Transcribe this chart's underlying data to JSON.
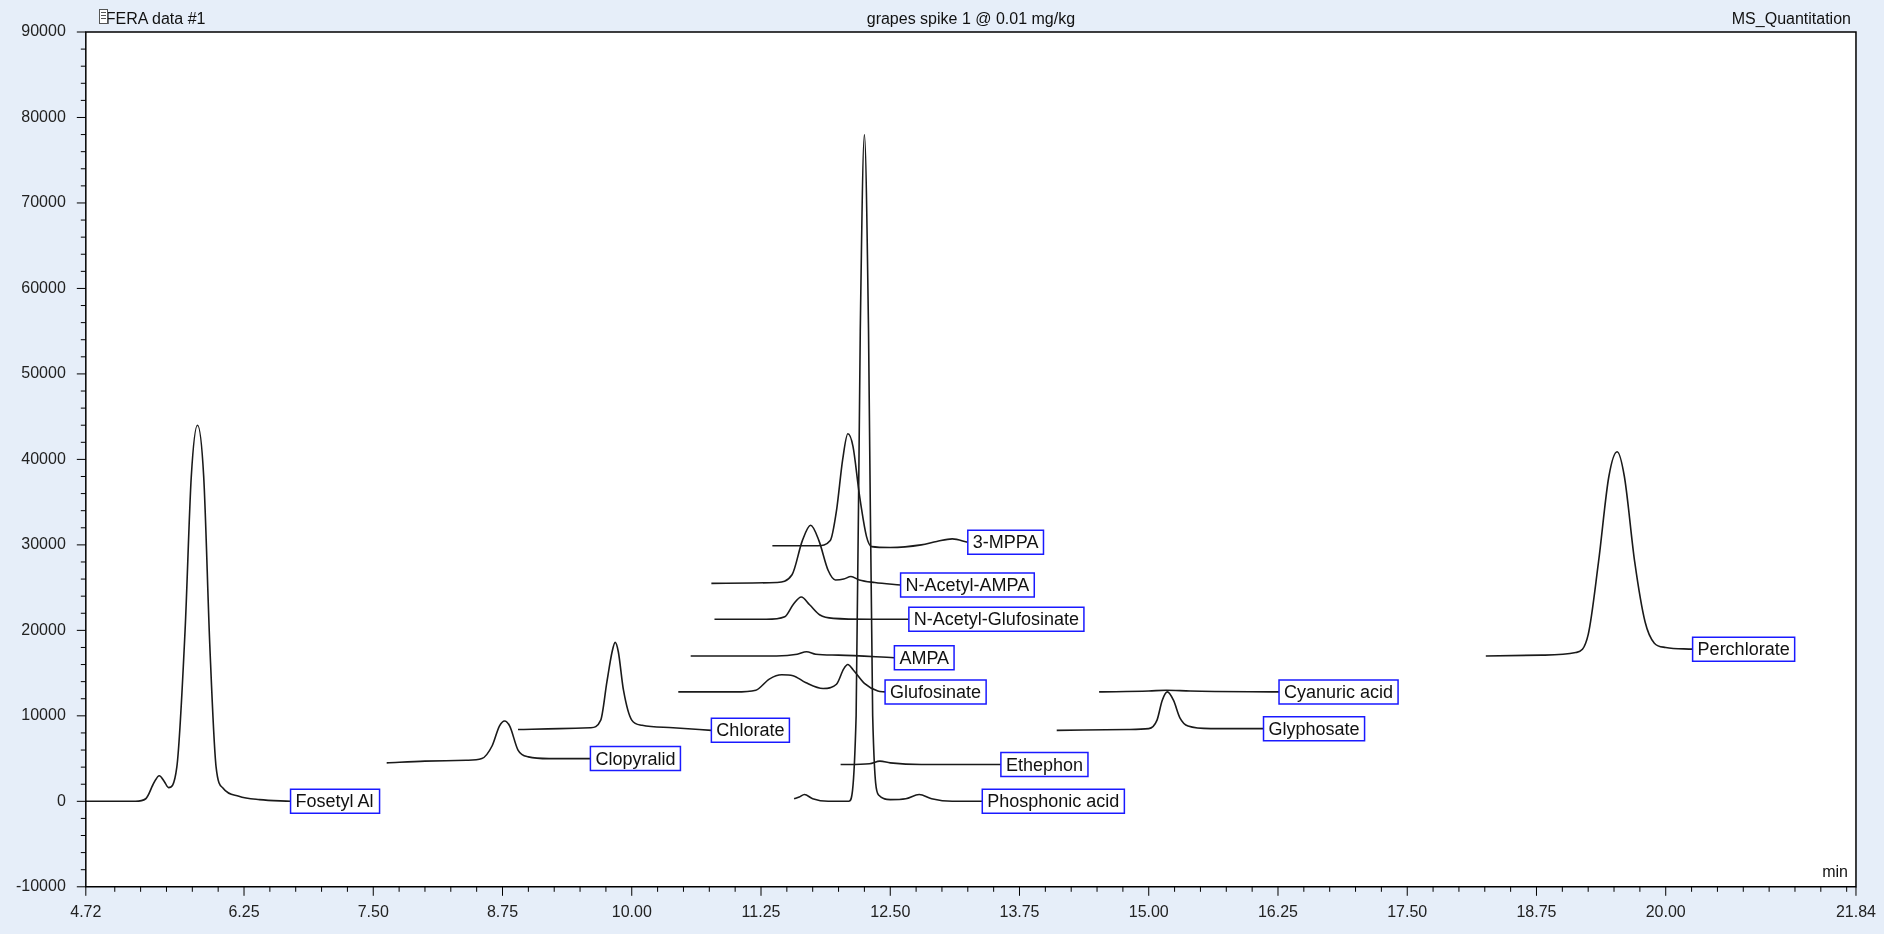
{
  "chart_data": {
    "type": "line",
    "title": "grapes spike 1 @ 0.01 mg/kg",
    "xlabel": "min",
    "annotations": [
      "FERA data #1",
      "MS_Quantitation"
    ],
    "xlim": [
      4.72,
      21.84
    ],
    "ylim": [
      -10000,
      90000
    ],
    "xticks": [
      4.72,
      {
        "value": 5,
        "label": null
      },
      {
        "value": 5.25,
        "label": null
      },
      {
        "value": 5.5,
        "label": null
      },
      {
        "value": 5.75,
        "label": null
      },
      {
        "value": 6,
        "label": null
      },
      6.25,
      {
        "value": 6.5,
        "label": null
      },
      {
        "value": 6.75,
        "label": null
      },
      {
        "value": 7,
        "label": null
      },
      {
        "value": 7.25,
        "label": null
      },
      {
        "value": 7.5,
        "label": "7.50"
      },
      {
        "value": 7.75,
        "label": null
      },
      {
        "value": 8,
        "label": null
      },
      {
        "value": 8.25,
        "label": null
      },
      {
        "value": 8.5,
        "label": null
      },
      8.75,
      {
        "value": 9,
        "label": null
      },
      {
        "value": 9.25,
        "label": null
      },
      {
        "value": 9.5,
        "label": null
      },
      {
        "value": 9.75,
        "label": null
      },
      {
        "value": 10,
        "label": "10.00"
      },
      {
        "value": 10.25,
        "label": null
      },
      {
        "value": 10.5,
        "label": null
      },
      {
        "value": 10.75,
        "label": null
      },
      {
        "value": 11,
        "label": null
      },
      11.25,
      {
        "value": 11.5,
        "label": null
      },
      {
        "value": 11.75,
        "label": null
      },
      {
        "value": 12,
        "label": null
      },
      {
        "value": 12.25,
        "label": null
      },
      {
        "value": 12.5,
        "label": "12.50"
      },
      {
        "value": 12.75,
        "label": null
      },
      {
        "value": 13,
        "label": null
      },
      {
        "value": 13.25,
        "label": null
      },
      {
        "value": 13.5,
        "label": null
      },
      13.75,
      {
        "value": 14,
        "label": null
      },
      {
        "value": 14.25,
        "label": null
      },
      {
        "value": 14.5,
        "label": null
      },
      {
        "value": 14.75,
        "label": null
      },
      {
        "value": 15,
        "label": "15.00"
      },
      {
        "value": 15.25,
        "label": null
      },
      {
        "value": 15.5,
        "label": null
      },
      {
        "value": 15.75,
        "label": null
      },
      {
        "value": 16,
        "label": null
      },
      16.25,
      {
        "value": 16.5,
        "label": null
      },
      {
        "value": 16.75,
        "label": null
      },
      {
        "value": 17,
        "label": null
      },
      {
        "value": 17.25,
        "label": null
      },
      {
        "value": 17.5,
        "label": "17.50"
      },
      {
        "value": 17.75,
        "label": null
      },
      {
        "value": 18,
        "label": null
      },
      {
        "value": 18.25,
        "label": null
      },
      {
        "value": 18.5,
        "label": null
      },
      18.75,
      {
        "value": 19,
        "label": null
      },
      {
        "value": 19.25,
        "label": null
      },
      {
        "value": 19.5,
        "label": null
      },
      {
        "value": 19.75,
        "label": null
      },
      {
        "value": 20,
        "label": "20.00"
      },
      {
        "value": 20.25,
        "label": null
      },
      {
        "value": 20.5,
        "label": null
      },
      {
        "value": 20.75,
        "label": null
      },
      {
        "value": 21,
        "label": null
      },
      {
        "value": 21.25,
        "label": null
      },
      {
        "value": 21.5,
        "label": null
      },
      {
        "value": 21.75,
        "label": null
      },
      21.84
    ],
    "yticks": [
      -10000,
      {
        "value": -8000,
        "label": null
      },
      {
        "value": -6000,
        "label": null
      },
      {
        "value": -4000,
        "label": null
      },
      {
        "value": -2000,
        "label": null
      },
      0,
      {
        "value": 2000,
        "label": null
      },
      {
        "value": 4000,
        "label": null
      },
      {
        "value": 6000,
        "label": null
      },
      {
        "value": 8000,
        "label": null
      },
      10000,
      {
        "value": 12000,
        "label": null
      },
      {
        "value": 14000,
        "label": null
      },
      {
        "value": 16000,
        "label": null
      },
      {
        "value": 18000,
        "label": null
      },
      20000,
      {
        "value": 22000,
        "label": null
      },
      {
        "value": 24000,
        "label": null
      },
      {
        "value": 26000,
        "label": null
      },
      {
        "value": 28000,
        "label": null
      },
      30000,
      {
        "value": 32000,
        "label": null
      },
      {
        "value": 34000,
        "label": null
      },
      {
        "value": 36000,
        "label": null
      },
      {
        "value": 38000,
        "label": null
      },
      40000,
      {
        "value": 42000,
        "label": null
      },
      {
        "value": 44000,
        "label": null
      },
      {
        "value": 46000,
        "label": null
      },
      {
        "value": 48000,
        "label": null
      },
      50000,
      {
        "value": 52000,
        "label": null
      },
      {
        "value": 54000,
        "label": null
      },
      {
        "value": 56000,
        "label": null
      },
      {
        "value": 58000,
        "label": null
      },
      60000,
      {
        "value": 62000,
        "label": null
      },
      {
        "value": 64000,
        "label": null
      },
      {
        "value": 66000,
        "label": null
      },
      {
        "value": 68000,
        "label": null
      },
      70000,
      {
        "value": 72000,
        "label": null
      },
      {
        "value": 74000,
        "label": null
      },
      {
        "value": 76000,
        "label": null
      },
      {
        "value": 78000,
        "label": null
      },
      80000,
      {
        "value": 82000,
        "label": null
      },
      {
        "value": 84000,
        "label": null
      },
      {
        "value": 86000,
        "label": null
      },
      {
        "value": 88000,
        "label": null
      },
      90000
    ],
    "grid": false,
    "marker": "none",
    "line_style": "solid",
    "series": [
      {
        "name": "Fosetyl Al",
        "color": "#1a1a1a",
        "x": [
          4.72,
          5.2,
          5.3,
          5.38,
          5.43,
          5.48,
          5.52,
          5.6,
          5.68,
          5.74,
          5.8,
          5.86,
          5.92,
          5.98,
          6.05,
          6.2,
          6.4,
          6.7
        ],
        "values": [
          0,
          0,
          300,
          2200,
          3000,
          2300,
          1600,
          4000,
          20000,
          38000,
          44000,
          38000,
          18000,
          4000,
          1500,
          600,
          200,
          0
        ]
      },
      {
        "name": "Clopyralid",
        "color": "#1a1a1a",
        "x": [
          7.63,
          8.0,
          8.4,
          8.55,
          8.65,
          8.72,
          8.77,
          8.82,
          8.9,
          9.0,
          9.2,
          9.6
        ],
        "values": [
          4500,
          4700,
          4800,
          5000,
          6500,
          8800,
          9400,
          8800,
          6000,
          5200,
          5000,
          5000
        ]
      },
      {
        "name": "Chlorate",
        "color": "#1a1a1a",
        "x": [
          8.9,
          9.3,
          9.6,
          9.7,
          9.76,
          9.81,
          9.84,
          9.87,
          9.92,
          10.0,
          10.1,
          10.4,
          10.77
        ],
        "values": [
          8400,
          8500,
          8600,
          9500,
          14000,
          17500,
          18600,
          17500,
          13000,
          9500,
          8900,
          8600,
          8300
        ]
      },
      {
        "name": "Glufosinate",
        "color": "#1a1a1a",
        "x": [
          10.45,
          11.0,
          11.2,
          11.33,
          11.45,
          11.56,
          11.68,
          11.85,
          11.98,
          12.05,
          12.09,
          12.14,
          12.25,
          12.38,
          12.45
        ],
        "values": [
          12800,
          12800,
          13000,
          14300,
          14800,
          14700,
          13900,
          13200,
          13700,
          15500,
          16000,
          15400,
          13800,
          12900,
          12800
        ]
      },
      {
        "name": "AMPA",
        "color": "#1a1a1a",
        "x": [
          10.57,
          11.4,
          11.6,
          11.69,
          11.78,
          12.0,
          12.54
        ],
        "values": [
          17000,
          17000,
          17200,
          17500,
          17200,
          17100,
          16800
        ]
      },
      {
        "name": "N-Acetyl-Glufosinate",
        "color": "#1a1a1a",
        "x": [
          10.8,
          11.3,
          11.48,
          11.56,
          11.64,
          11.72,
          11.82,
          11.95,
          12.3,
          12.68
        ],
        "values": [
          21300,
          21300,
          21600,
          23000,
          23900,
          23000,
          21800,
          21400,
          21300,
          21300
        ]
      },
      {
        "name": "N-Acetyl-AMPA",
        "color": "#1a1a1a",
        "x": [
          10.77,
          11.4,
          11.55,
          11.65,
          11.73,
          11.81,
          11.9,
          11.97,
          12.05,
          12.12,
          12.2,
          12.35,
          12.6
        ],
        "values": [
          25500,
          25600,
          26500,
          30500,
          32300,
          30500,
          27000,
          25900,
          26000,
          26300,
          25900,
          25600,
          25300
        ]
      },
      {
        "name": "3-MPPA",
        "color": "#1a1a1a",
        "x": [
          11.36,
          11.8,
          11.92,
          11.98,
          12.04,
          12.09,
          12.14,
          12.2,
          12.27,
          12.32,
          12.5,
          12.8,
          12.95,
          13.1,
          13.25
        ],
        "values": [
          29900,
          29900,
          30500,
          34000,
          40000,
          43000,
          41500,
          36000,
          31000,
          29800,
          29700,
          30000,
          30400,
          30700,
          30300
        ]
      },
      {
        "name": "Ethephon",
        "color": "#1a1a1a",
        "x": [
          12.02,
          12.3,
          12.4,
          12.5,
          12.8,
          13.57
        ],
        "values": [
          4300,
          4400,
          4700,
          4500,
          4300,
          4300
        ]
      },
      {
        "name": "Phosphonic acid",
        "color": "#1a1a1a",
        "x": [
          11.57,
          11.62,
          11.67,
          11.75,
          11.9,
          12.1,
          12.17,
          12.21,
          12.25,
          12.29,
          12.33,
          12.39,
          12.5,
          12.65,
          12.78,
          12.9,
          13.1,
          13.39
        ],
        "values": [
          300,
          500,
          800,
          300,
          0,
          0,
          10000,
          55000,
          78000,
          55000,
          10000,
          700,
          200,
          300,
          800,
          300,
          0,
          0
        ]
      },
      {
        "name": "Cyanuric acid",
        "color": "#1a1a1a",
        "x": [
          14.52,
          15.0,
          15.17,
          15.4,
          16.26
        ],
        "values": [
          12800,
          12900,
          13000,
          12900,
          12800
        ]
      },
      {
        "name": "Glyphosate",
        "color": "#1a1a1a",
        "x": [
          14.11,
          14.8,
          15.0,
          15.08,
          15.13,
          15.18,
          15.24,
          15.3,
          15.38,
          15.6,
          16.11
        ],
        "values": [
          8300,
          8400,
          8500,
          9500,
          11800,
          12800,
          11800,
          9800,
          8800,
          8500,
          8500
        ]
      },
      {
        "name": "Perchlorate",
        "color": "#1a1a1a",
        "x": [
          18.26,
          18.8,
          19.13,
          19.25,
          19.35,
          19.45,
          19.53,
          19.6,
          19.7,
          19.8,
          19.89,
          20.0,
          20.26
        ],
        "values": [
          17000,
          17100,
          17400,
          19500,
          28000,
          38000,
          40900,
          38000,
          28000,
          21000,
          18500,
          18000,
          17800
        ]
      }
    ]
  }
}
